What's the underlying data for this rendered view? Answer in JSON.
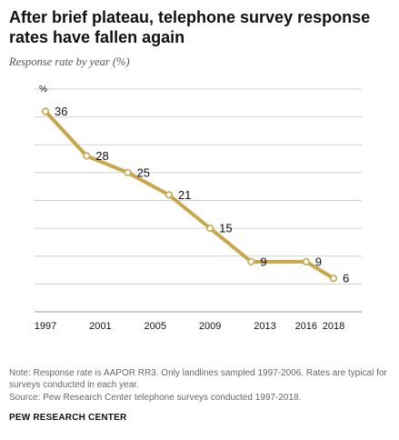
{
  "title": "After brief plateau, telephone survey response rates have fallen again",
  "subtitle": "Response rate by year (%)",
  "note": "Note: Response rate is AAPOR RR3. Only landlines sampled 1997-2006. Rates are typical for surveys conducted in each year.",
  "source": "Source: Pew Research Center telephone surveys conducted 1997-2018.",
  "brand": "PEW RESEARCH CENTER",
  "colors": {
    "line": "#c9a64a",
    "grid": "#d0d0d0",
    "axis": "#9a9a9a",
    "text": "#111111"
  },
  "chart_data": {
    "type": "line",
    "unit_label": "%",
    "x": [
      1997,
      2000,
      2003,
      2006,
      2009,
      2012,
      2016,
      2018
    ],
    "values": [
      36,
      28,
      25,
      21,
      15,
      9,
      9,
      6
    ],
    "data_labels": [
      "36",
      "28",
      "25",
      "21",
      "15",
      "9",
      "9",
      "6"
    ],
    "x_ticks": [
      1997,
      2001,
      2005,
      2009,
      2013,
      2016,
      2018
    ],
    "x_tick_labels": [
      "1997",
      "2001",
      "2005",
      "2009",
      "2013",
      "2016",
      "2018"
    ],
    "xlim": [
      1997,
      2018
    ],
    "ylim": [
      0,
      40
    ],
    "y_gridlines": [
      5,
      10,
      15,
      20,
      25,
      30,
      35,
      40
    ],
    "grid": true,
    "legend": "none"
  }
}
